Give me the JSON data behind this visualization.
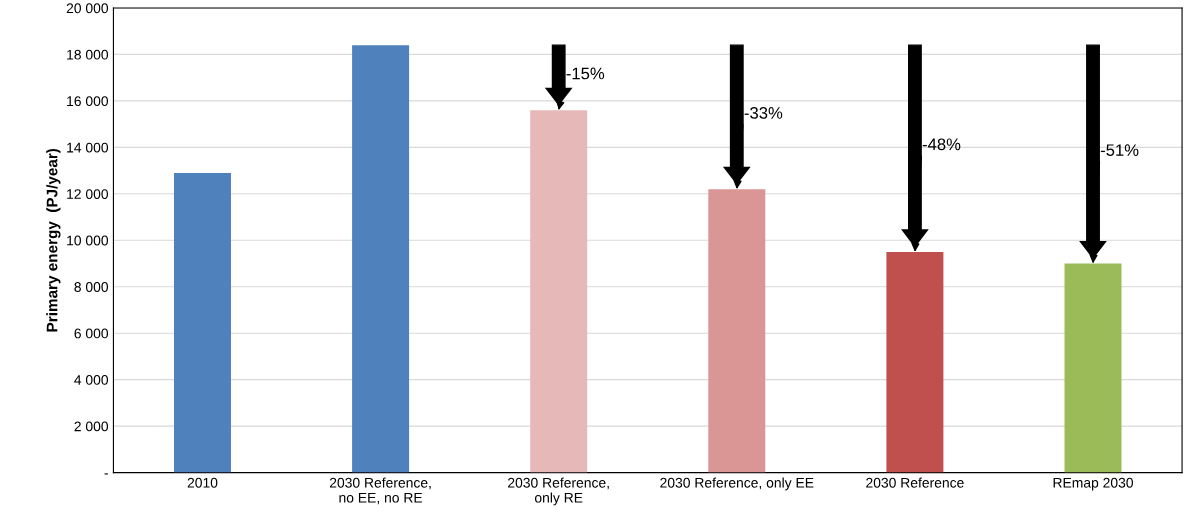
{
  "chart_data": {
    "type": "bar",
    "ylabel": "Primary energy  (PJ/year)",
    "categories": [
      "2010",
      "2030 Reference,\nno EE, no RE",
      "2030 Reference,\nonly RE",
      "2030 Reference, only EE",
      "2030 Reference",
      "REmap 2030"
    ],
    "values": [
      12900,
      18400,
      15600,
      12200,
      9500,
      9000
    ],
    "colors": [
      "#4f81bd",
      "#4f81bd",
      "#e6b9b8",
      "#d99694",
      "#c0504d",
      "#9bbb59"
    ],
    "ylim": [
      0,
      20000
    ],
    "yticks": [
      {
        "value": 0,
        "label": "-"
      },
      {
        "value": 2000,
        "label": "2 000"
      },
      {
        "value": 4000,
        "label": "4 000"
      },
      {
        "value": 6000,
        "label": "6 000"
      },
      {
        "value": 8000,
        "label": "8 000"
      },
      {
        "value": 10000,
        "label": "10 000"
      },
      {
        "value": 12000,
        "label": "12 000"
      },
      {
        "value": 14000,
        "label": "14 000"
      },
      {
        "value": 16000,
        "label": "16 000"
      },
      {
        "value": 18000,
        "label": "18 000"
      },
      {
        "value": 20000,
        "label": "20 000"
      }
    ],
    "grid": "y",
    "annotations": [
      {
        "text": "-15%",
        "x": "2030 Reference,\nonly RE",
        "y": 15600
      },
      {
        "text": "-33%",
        "x": "2030 Reference, only EE",
        "y": 12200
      },
      {
        "text": "-48%",
        "x": "2030 Reference",
        "y": 9500
      },
      {
        "text": "-51%",
        "x": "REmap 2030",
        "y": 9000
      }
    ]
  }
}
